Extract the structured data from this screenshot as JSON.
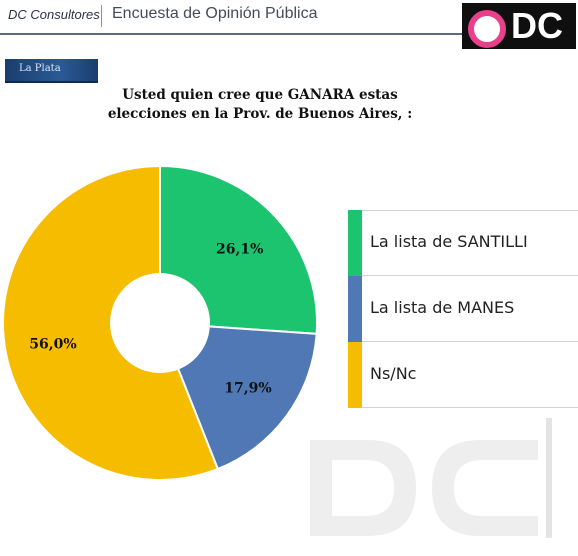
{
  "header": {
    "brand": "DC Consultores",
    "survey_title": "Encuesta de Opinión Pública",
    "logo_text": "DC"
  },
  "location": "La Plata",
  "question": {
    "line1": "Usted quien cree que GANARA estas",
    "line2": "elecciones en la Prov. de Buenos Aires, :"
  },
  "chart_data": {
    "type": "pie",
    "donut": true,
    "title": "Usted quien cree que GANARA estas elecciones en la Prov. de Buenos Aires, :",
    "legend_position": "right",
    "slices": [
      {
        "label": "La lista de SANTILLI",
        "value": 26.1,
        "display": "26,1%",
        "color": "#1cc46f"
      },
      {
        "label": "La lista de MANES",
        "value": 17.9,
        "display": "17,9%",
        "color": "#4f78b5"
      },
      {
        "label": "Ns/Nc",
        "value": 56.0,
        "display": "56,0%",
        "color": "#f6bc00"
      }
    ]
  },
  "legend": {
    "items": [
      {
        "label": "La lista de SANTILLI",
        "color": "#1cc46f"
      },
      {
        "label": "La lista de MANES",
        "color": "#4f78b5"
      },
      {
        "label": "Ns/Nc",
        "color": "#f6bc00"
      }
    ]
  },
  "watermark": {
    "text": "DC"
  }
}
